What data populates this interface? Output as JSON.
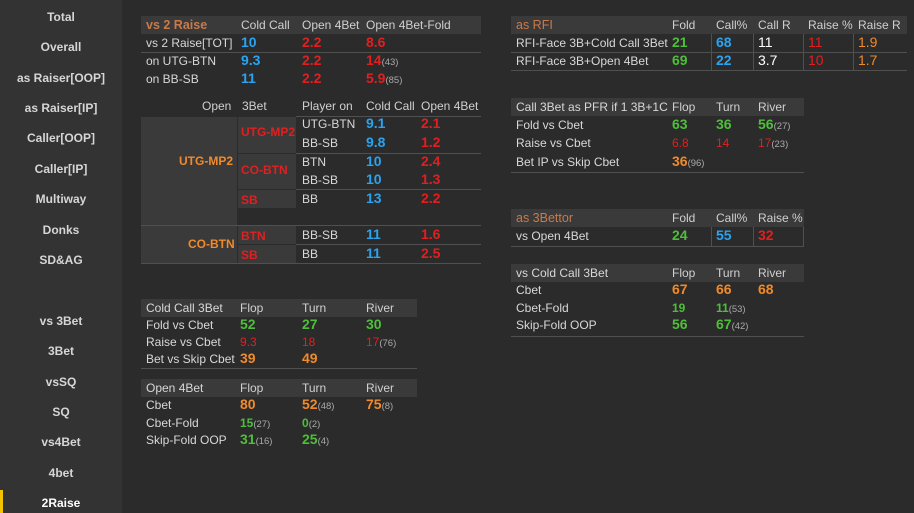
{
  "sidebar": {
    "items": [
      "Total",
      "Overall",
      "as Raiser[OOP]",
      "as Raiser[IP]",
      "Caller[OOP]",
      "Caller[IP]",
      "Multiway",
      "Donks",
      "SD&AG",
      "vs 3Bet",
      "3Bet",
      "vsSQ",
      "SQ",
      "vs4Bet",
      "4bet",
      "2Raise"
    ],
    "active": "2Raise"
  },
  "vs2raise": {
    "title": "vs 2 Raise",
    "cols": [
      "Cold Call",
      "Open 4Bet",
      "Open 4Bet-Fold"
    ],
    "rows": [
      {
        "label": "vs 2 Raise[TOT]",
        "v1": "10",
        "v2": "2.2",
        "v3": "8.6",
        "v3sub": ""
      },
      {
        "label": "on UTG-BTN",
        "v1": "9.3",
        "v2": "2.2",
        "v3": "14",
        "v3sub": "(43)"
      },
      {
        "label": "on BB-SB",
        "v1": "11",
        "v2": "2.2",
        "v3": "5.9",
        "v3sub": "(85)"
      }
    ]
  },
  "matrix": {
    "cols": [
      "Open",
      "3Bet",
      "Player on",
      "Cold Call",
      "Open 4Bet"
    ],
    "open1": "UTG-MP2",
    "open2": "CO-BTN",
    "three": [
      "UTG-MP2",
      "CO-BTN",
      "SB",
      "BTN",
      "SB"
    ],
    "rows": [
      {
        "p": "UTG-BTN",
        "cc": "9.1",
        "o4": "2.1"
      },
      {
        "p": "BB-SB",
        "cc": "9.8",
        "o4": "1.2"
      },
      {
        "p": "BTN",
        "cc": "10",
        "o4": "2.4"
      },
      {
        "p": "BB-SB",
        "cc": "10",
        "o4": "1.3"
      },
      {
        "p": "BB",
        "cc": "13",
        "o4": "2.2"
      },
      {
        "p": "BB-SB",
        "cc": "11",
        "o4": "1.6"
      },
      {
        "p": "BB",
        "cc": "11",
        "o4": "2.5"
      }
    ]
  },
  "coldcall": {
    "title": "Cold Call 3Bet",
    "cols": [
      "Flop",
      "Turn",
      "River"
    ],
    "rows": [
      {
        "label": "Fold vs Cbet",
        "f": "52",
        "t": "27",
        "r": "30",
        "rsub": ""
      },
      {
        "label": "Raise vs Cbet",
        "f": "9.3",
        "t": "18",
        "r": "17",
        "rsub": "(76)"
      },
      {
        "label": "Bet vs Skip Cbet",
        "f": "39",
        "t": "49",
        "r": "",
        "rsub": ""
      }
    ]
  },
  "open4bet": {
    "title": "Open 4Bet",
    "cols": [
      "Flop",
      "Turn",
      "River"
    ],
    "rows": [
      {
        "label": "Cbet",
        "f": "80",
        "fsub": "",
        "t": "52",
        "tsub": "(48)",
        "r": "75",
        "rsub": "(8)"
      },
      {
        "label": "Cbet-Fold",
        "f": "15",
        "fsub": "(27)",
        "t": "0",
        "tsub": "(2)",
        "r": "",
        "rsub": ""
      },
      {
        "label": "Skip-Fold OOP",
        "f": "31",
        "fsub": "(16)",
        "t": "25",
        "tsub": "(4)",
        "r": "",
        "rsub": ""
      }
    ]
  },
  "asrfi": {
    "title": "as  RFI",
    "cols": [
      "Fold",
      "Call%",
      "Call R",
      "Raise %",
      "Raise R"
    ],
    "rows": [
      {
        "label": "RFI-Face 3B+Cold Call 3Bet",
        "c1": "21",
        "c2": "68",
        "c3": "11",
        "c4": "11",
        "c5": "1.9"
      },
      {
        "label": "RFI-Face 3B+Open 4Bet",
        "c1": "69",
        "c2": "22",
        "c3": "3.7",
        "c4": "10",
        "c5": "1.7"
      }
    ]
  },
  "call3bet": {
    "title": "Call 3Bet as PFR if  1 3B+1C",
    "cols": [
      "Flop",
      "Turn",
      "River"
    ],
    "rows": [
      {
        "label": "Fold vs Cbet",
        "f": "63",
        "t": "36",
        "r": "56",
        "rsub": "(27)"
      },
      {
        "label": "Raise vs Cbet",
        "f": "6.8",
        "t": "14",
        "r": "17",
        "rsub": "(23)"
      },
      {
        "label": "Bet IP vs Skip Cbet",
        "f": "36",
        "fsub": "(96)",
        "t": "",
        "r": "",
        "rsub": ""
      }
    ]
  },
  "as3bettor": {
    "title": "as  3Bettor",
    "cols": [
      "Fold",
      "Call%",
      "Raise %"
    ],
    "row": {
      "label": "vs Open 4Bet",
      "c1": "24",
      "c2": "55",
      "c3": "32"
    }
  },
  "vscc3bet": {
    "title": "vs Cold Call 3Bet",
    "cols": [
      "Flop",
      "Turn",
      "River"
    ],
    "rows": [
      {
        "label": "Cbet",
        "f": "67",
        "fsub": "",
        "t": "66",
        "tsub": "",
        "r": "68"
      },
      {
        "label": "Cbet-Fold",
        "f": "19",
        "fsub": "",
        "t": "11",
        "tsub": "(53)",
        "r": ""
      },
      {
        "label": "Skip-Fold OOP",
        "f": "56",
        "fsub": "",
        "t": "67",
        "tsub": "(42)",
        "r": ""
      }
    ]
  },
  "colors": {
    "blue": "#2aa3f0",
    "red": "#e02020",
    "green": "#4fbf3a",
    "orange": "#f08a2a",
    "accent": "#f2c500"
  }
}
